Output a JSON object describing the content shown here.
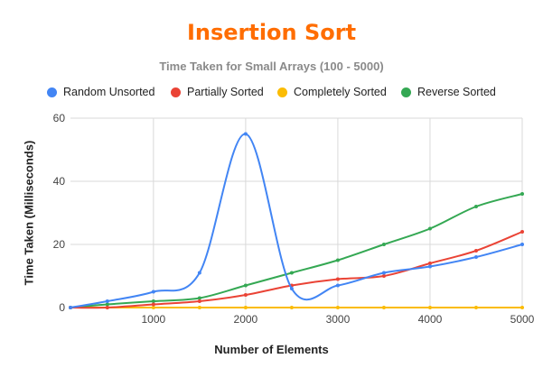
{
  "chart_data": {
    "type": "line",
    "title": "Insertion Sort",
    "subtitle": "Time Taken for Small Arrays (100 - 5000)",
    "xlabel": "Number of Elements",
    "ylabel": "Time Taken (Milliseconds)",
    "title_color": "#ff6d01",
    "x": [
      100,
      500,
      1000,
      1500,
      2000,
      2500,
      3000,
      3500,
      4000,
      4500,
      5000
    ],
    "xlim": [
      100,
      5000
    ],
    "ylim": [
      0,
      60
    ],
    "x_ticks": [
      1000,
      2000,
      3000,
      4000,
      5000
    ],
    "x_tick_labels": [
      "1000",
      "2000",
      "3000",
      "4000",
      "5000"
    ],
    "y_ticks": [
      0,
      20,
      40,
      60
    ],
    "y_tick_labels": [
      "0",
      "20",
      "40",
      "60"
    ],
    "grid": true,
    "smooth": true,
    "legend_position": "top",
    "series": [
      {
        "name": "Random Unsorted",
        "color": "#4285f4",
        "values": [
          0,
          2,
          5,
          11,
          55,
          6,
          7,
          11,
          13,
          16,
          20
        ]
      },
      {
        "name": "Partially Sorted",
        "color": "#ea4335",
        "values": [
          0,
          0,
          1,
          2,
          4,
          7,
          9,
          10,
          14,
          18,
          24
        ]
      },
      {
        "name": "Completely Sorted",
        "color": "#fbbc04",
        "values": [
          0,
          0,
          0,
          0,
          0,
          0,
          0,
          0,
          0,
          0,
          0
        ]
      },
      {
        "name": "Reverse Sorted",
        "color": "#34a853",
        "values": [
          0,
          1,
          2,
          3,
          7,
          11,
          15,
          20,
          25,
          32,
          36
        ]
      }
    ]
  }
}
